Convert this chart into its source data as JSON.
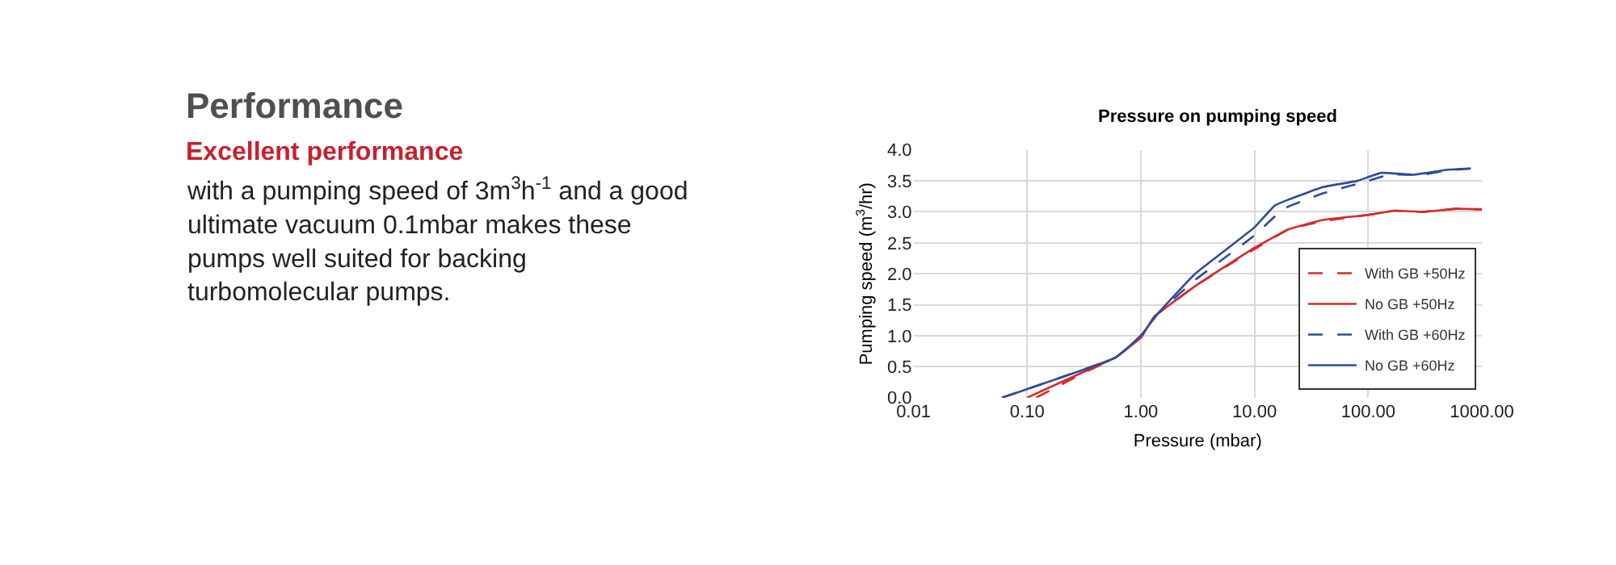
{
  "chart_data": {
    "type": "line",
    "title": "Pressure on pumping speed",
    "xlabel": "Pressure (mbar)",
    "ylabel": "Pumping speed (m$^{3}$/hr)",
    "annotations": [
      "Performance",
      "Excellent performance",
      "with a pumping speed of 3m$^{3}$h$^{-1}$ and a good\nultimate vacuum 0.1mbar makes these\npumps well suited for backing\nturbomolecular pumps."
    ],
    "log": "x",
    "xlim": [
      0.01,
      1000
    ],
    "xticks": [
      {
        "value": 0.01,
        "label": "0.01"
      },
      {
        "value": 0.1,
        "label": "0.10"
      },
      {
        "value": 1,
        "label": "1.00"
      },
      {
        "value": 10,
        "label": "10.00"
      },
      {
        "value": 100,
        "label": "100.00"
      },
      {
        "value": 1000,
        "label": "1000.00"
      }
    ],
    "ylim": [
      0,
      4
    ],
    "yticks": [
      {
        "value": 0,
        "label": "0.0"
      },
      {
        "value": 0.5,
        "label": "0.5"
      },
      {
        "value": 1,
        "label": "1.0"
      },
      {
        "value": 1.5,
        "label": "1.5"
      },
      {
        "value": 2,
        "label": "2.0"
      },
      {
        "value": 2.5,
        "label": "2.5"
      },
      {
        "value": 3,
        "label": "3.0"
      },
      {
        "value": 3.5,
        "label": "3.5"
      },
      {
        "value": 4,
        "label": "4.0"
      }
    ],
    "grid": true,
    "legend": "bottom right",
    "marker": "none",
    "series": [
      {
        "name": "With GB +50Hz",
        "color": "#d42b2b",
        "line_style": "dashed",
        "x": [
          0.12,
          0.3,
          0.6,
          1,
          1.3,
          3,
          10,
          20,
          40,
          100,
          170,
          300,
          600,
          1000
        ],
        "values": [
          0,
          0.38,
          0.65,
          0.97,
          1.3,
          1.8,
          2.4,
          2.72,
          2.85,
          2.95,
          3.02,
          3.0,
          3.05,
          3.04
        ]
      },
      {
        "name": "No GB +50Hz",
        "color": "#d42b2b",
        "line_style": "solid",
        "x": [
          0.1,
          0.3,
          0.6,
          1,
          1.3,
          3,
          10,
          20,
          40,
          100,
          170,
          300,
          600,
          1000
        ],
        "values": [
          0,
          0.4,
          0.65,
          0.97,
          1.3,
          1.8,
          2.42,
          2.72,
          2.87,
          2.95,
          3.02,
          3.0,
          3.05,
          3.04
        ]
      },
      {
        "name": "With GB +60Hz",
        "color": "#2e4c9c",
        "line_style": "dashed",
        "x": [
          0.06,
          0.6,
          1,
          1.4,
          3,
          10,
          18,
          40,
          100,
          150,
          300,
          500,
          800
        ],
        "values": [
          0,
          0.65,
          1.0,
          1.35,
          1.9,
          2.62,
          3.05,
          3.3,
          3.5,
          3.6,
          3.6,
          3.67,
          3.7
        ]
      },
      {
        "name": "No GB +60Hz",
        "color": "#2e4c9c",
        "line_style": "solid",
        "x": [
          0.06,
          0.6,
          1,
          1.4,
          3,
          10,
          15,
          20,
          40,
          80,
          130,
          250,
          500,
          800
        ],
        "values": [
          0,
          0.65,
          1.0,
          1.35,
          2.0,
          2.75,
          3.1,
          3.2,
          3.4,
          3.5,
          3.63,
          3.6,
          3.68,
          3.7
        ]
      }
    ]
  }
}
